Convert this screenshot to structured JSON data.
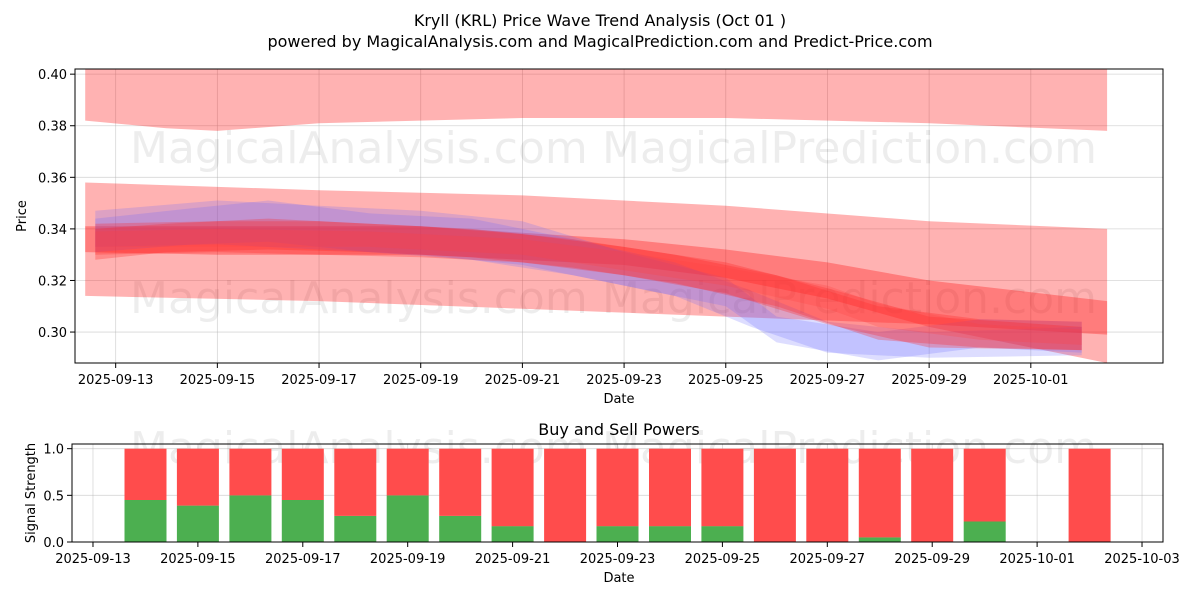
{
  "chart_data": [
    {
      "type": "area",
      "title": "Kryll (KRL) Price Wave Trend Analysis (Oct 01 )",
      "subtitle": "powered by MagicalAnalysis.com and MagicalPrediction.com and Predict-Price.com",
      "xlabel": "Date",
      "ylabel": "Price",
      "ylim": [
        0.288,
        0.402
      ],
      "xlim_days": [
        -0.8,
        20.6
      ],
      "x_ticks": [
        {
          "label": "2025-09-13",
          "day": 0
        },
        {
          "label": "2025-09-15",
          "day": 2
        },
        {
          "label": "2025-09-17",
          "day": 4
        },
        {
          "label": "2025-09-19",
          "day": 6
        },
        {
          "label": "2025-09-21",
          "day": 8
        },
        {
          "label": "2025-09-23",
          "day": 10
        },
        {
          "label": "2025-09-25",
          "day": 12
        },
        {
          "label": "2025-09-27",
          "day": 14
        },
        {
          "label": "2025-09-29",
          "day": 16
        },
        {
          "label": "2025-10-01",
          "day": 18
        }
      ],
      "y_ticks": [
        {
          "label": "0.30",
          "value": 0.3
        },
        {
          "label": "0.32",
          "value": 0.32
        },
        {
          "label": "0.34",
          "value": 0.34
        },
        {
          "label": "0.36",
          "value": 0.36
        },
        {
          "label": "0.38",
          "value": 0.38
        },
        {
          "label": "0.40",
          "value": 0.4
        }
      ],
      "grid": true,
      "bands": [
        {
          "name": "upper-envelope",
          "color": "#ff0000",
          "opacity": 0.3,
          "x": [
            -0.6,
            1,
            2,
            4,
            8,
            12,
            16,
            19.5
          ],
          "upper": [
            0.402,
            0.402,
            0.402,
            0.402,
            0.402,
            0.402,
            0.402,
            0.402
          ],
          "lower": [
            0.382,
            0.379,
            0.378,
            0.381,
            0.383,
            0.383,
            0.381,
            0.378
          ]
        },
        {
          "name": "middle-envelope",
          "color": "#ff0000",
          "opacity": 0.3,
          "x": [
            -0.6,
            4,
            8,
            12,
            16,
            19.5
          ],
          "upper": [
            0.358,
            0.355,
            0.353,
            0.349,
            0.343,
            0.34
          ],
          "lower": [
            0.314,
            0.312,
            0.309,
            0.306,
            0.303,
            0.299
          ]
        },
        {
          "name": "lower-left-envelope",
          "color": "#ff0000",
          "opacity": 0.3,
          "x": [
            -0.6,
            2,
            6,
            10,
            12,
            14,
            16,
            19.5
          ],
          "upper": [
            0.341,
            0.341,
            0.341,
            0.336,
            0.332,
            0.327,
            0.32,
            0.312
          ],
          "lower": [
            0.331,
            0.33,
            0.33,
            0.326,
            0.321,
            0.313,
            0.302,
            0.288
          ]
        }
      ],
      "series_bands": [
        {
          "name": "blue-wave-1",
          "color": "#6666ff",
          "opacity": 0.22,
          "x": [
            -0.4,
            2,
            4,
            6,
            8,
            10,
            12,
            13,
            15,
            17,
            19
          ],
          "upper": [
            0.347,
            0.351,
            0.349,
            0.347,
            0.343,
            0.331,
            0.321,
            0.306,
            0.3,
            0.305,
            0.304
          ],
          "lower": [
            0.333,
            0.334,
            0.332,
            0.33,
            0.326,
            0.318,
            0.31,
            0.296,
            0.289,
            0.294,
            0.292
          ]
        },
        {
          "name": "blue-wave-2",
          "color": "#6666ff",
          "opacity": 0.22,
          "x": [
            -0.4,
            1.5,
            3,
            5,
            7,
            9,
            11,
            12.5,
            14,
            16,
            19
          ],
          "upper": [
            0.344,
            0.348,
            0.351,
            0.346,
            0.344,
            0.336,
            0.327,
            0.316,
            0.304,
            0.3,
            0.302
          ],
          "lower": [
            0.331,
            0.334,
            0.335,
            0.331,
            0.328,
            0.322,
            0.314,
            0.302,
            0.292,
            0.29,
            0.291
          ]
        },
        {
          "name": "red-wave-1",
          "color": "#ff2020",
          "opacity": 0.28,
          "x": [
            -0.4,
            2,
            4,
            6,
            8,
            10,
            12,
            14,
            16,
            19
          ],
          "upper": [
            0.342,
            0.343,
            0.343,
            0.341,
            0.338,
            0.333,
            0.327,
            0.317,
            0.306,
            0.302
          ],
          "lower": [
            0.33,
            0.331,
            0.33,
            0.329,
            0.327,
            0.322,
            0.315,
            0.303,
            0.294,
            0.293
          ]
        },
        {
          "name": "red-wave-2",
          "color": "#ff2020",
          "opacity": 0.28,
          "x": [
            -0.4,
            1,
            3,
            5,
            7,
            9,
            11,
            13,
            15,
            17,
            19
          ],
          "upper": [
            0.34,
            0.342,
            0.344,
            0.342,
            0.34,
            0.336,
            0.33,
            0.322,
            0.31,
            0.305,
            0.304
          ],
          "lower": [
            0.328,
            0.331,
            0.332,
            0.331,
            0.329,
            0.325,
            0.319,
            0.31,
            0.297,
            0.294,
            0.293
          ]
        },
        {
          "name": "red-wave-3",
          "color": "#ff4040",
          "opacity": 0.25,
          "x": [
            -0.4,
            2,
            5,
            8,
            10,
            12,
            14,
            15,
            17,
            19
          ],
          "upper": [
            0.339,
            0.34,
            0.339,
            0.336,
            0.331,
            0.325,
            0.318,
            0.311,
            0.303,
            0.301
          ],
          "lower": [
            0.333,
            0.333,
            0.333,
            0.33,
            0.324,
            0.318,
            0.309,
            0.302,
            0.297,
            0.295
          ]
        }
      ],
      "watermarks": [
        "MagicalAnalysis.com",
        "MagicalPrediction.com",
        "MagicalAnalysis.com",
        "MagicalPrediction.com"
      ]
    },
    {
      "type": "bar",
      "title": "Buy and Sell Powers",
      "xlabel": "Date",
      "ylabel": "Signal Strength",
      "ylim": [
        0,
        1.05
      ],
      "xlim_days": [
        -0.4,
        20.4
      ],
      "x_ticks": [
        {
          "label": "2025-09-13",
          "day": 0
        },
        {
          "label": "2025-09-15",
          "day": 2
        },
        {
          "label": "2025-09-17",
          "day": 4
        },
        {
          "label": "2025-09-19",
          "day": 6
        },
        {
          "label": "2025-09-21",
          "day": 8
        },
        {
          "label": "2025-09-23",
          "day": 10
        },
        {
          "label": "2025-09-25",
          "day": 12
        },
        {
          "label": "2025-09-27",
          "day": 14
        },
        {
          "label": "2025-09-29",
          "day": 16
        },
        {
          "label": "2025-10-01",
          "day": 18
        },
        {
          "label": "2025-10-03",
          "day": 20
        }
      ],
      "y_ticks": [
        {
          "label": "0.0",
          "value": 0.0
        },
        {
          "label": "0.5",
          "value": 0.5
        },
        {
          "label": "1.0",
          "value": 1.0
        }
      ],
      "grid": true,
      "colors": {
        "buy": "#4caf50",
        "sell": "#ff4c4c"
      },
      "categories": [
        "2025-09-14",
        "2025-09-15",
        "2025-09-16",
        "2025-09-17",
        "2025-09-18",
        "2025-09-19",
        "2025-09-20",
        "2025-09-21",
        "2025-09-22",
        "2025-09-23",
        "2025-09-24",
        "2025-09-25",
        "2025-09-26",
        "2025-09-27",
        "2025-09-28",
        "2025-09-29",
        "2025-09-30",
        "2025-10-02"
      ],
      "days": [
        1,
        2,
        3,
        4,
        5,
        6,
        7,
        8,
        9,
        10,
        11,
        12,
        13,
        14,
        15,
        16,
        17,
        19
      ],
      "series": [
        {
          "name": "Buy",
          "values": [
            0.45,
            0.39,
            0.5,
            0.45,
            0.28,
            0.5,
            0.28,
            0.17,
            0.0,
            0.17,
            0.17,
            0.17,
            0.0,
            0.0,
            0.05,
            0.0,
            0.22,
            0.0
          ]
        },
        {
          "name": "Sell",
          "values": [
            0.55,
            0.61,
            0.5,
            0.55,
            0.72,
            0.5,
            0.72,
            0.83,
            1.0,
            0.83,
            0.83,
            0.83,
            1.0,
            1.0,
            0.95,
            1.0,
            0.78,
            1.0
          ]
        }
      ],
      "watermarks": [
        "MagicalAnalysis.com",
        "MagicalPrediction.com"
      ]
    }
  ]
}
